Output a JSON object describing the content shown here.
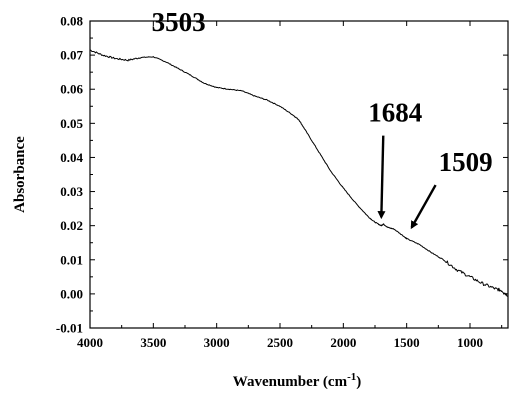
{
  "chart_data": {
    "type": "line",
    "title": "",
    "xlabel": "Wavenumber (cm",
    "xlabel_sup": "-1",
    "xlabel_end": ")",
    "ylabel": "Absorbance",
    "xlim": [
      4000,
      700
    ],
    "ylim": [
      -0.01,
      0.08
    ],
    "x_ticks": [
      4000,
      3500,
      3000,
      2500,
      2000,
      1500,
      1000
    ],
    "y_ticks": [
      -0.01,
      0.0,
      0.01,
      0.02,
      0.03,
      0.04,
      0.05,
      0.06,
      0.07,
      0.08
    ],
    "x_tick_labels": [
      "4000",
      "3500",
      "3000",
      "2500",
      "2000",
      "1500",
      "1000"
    ],
    "y_tick_labels": [
      "-0.01",
      "0.00",
      "0.01",
      "0.02",
      "0.03",
      "0.04",
      "0.05",
      "0.06",
      "0.07",
      "0.08"
    ],
    "grid": false,
    "series": [
      {
        "x": [
          4000,
          3900,
          3800,
          3700,
          3600,
          3500,
          3400,
          3300,
          3200,
          3100,
          3000,
          2900,
          2800,
          2700,
          2600,
          2500,
          2400,
          2350,
          2300,
          2200,
          2100,
          2000,
          1900,
          1800,
          1750,
          1700,
          1684,
          1650,
          1600,
          1509,
          1500,
          1400,
          1300,
          1200,
          1100,
          1000,
          900,
          800,
          750,
          700
        ],
        "y": [
          0.0715,
          0.07,
          0.069,
          0.0685,
          0.0693,
          0.0695,
          0.068,
          0.066,
          0.064,
          0.0618,
          0.0605,
          0.06,
          0.0595,
          0.058,
          0.0568,
          0.055,
          0.0525,
          0.051,
          0.048,
          0.042,
          0.036,
          0.031,
          0.0265,
          0.0225,
          0.021,
          0.02,
          0.0205,
          0.0195,
          0.019,
          0.0165,
          0.0162,
          0.0145,
          0.012,
          0.0098,
          0.007,
          0.005,
          0.003,
          0.0015,
          0.001,
          -0.0005
        ]
      }
    ],
    "annotations": [
      {
        "text": "3503",
        "x": 3300,
        "y": 0.077
      },
      {
        "text": "1684",
        "x": 1590,
        "y": 0.0505,
        "arrow_to": [
          1700,
          0.0225
        ]
      },
      {
        "text": "1509",
        "x": 1035,
        "y": 0.036,
        "arrow_to": [
          1460,
          0.0195
        ]
      }
    ]
  }
}
